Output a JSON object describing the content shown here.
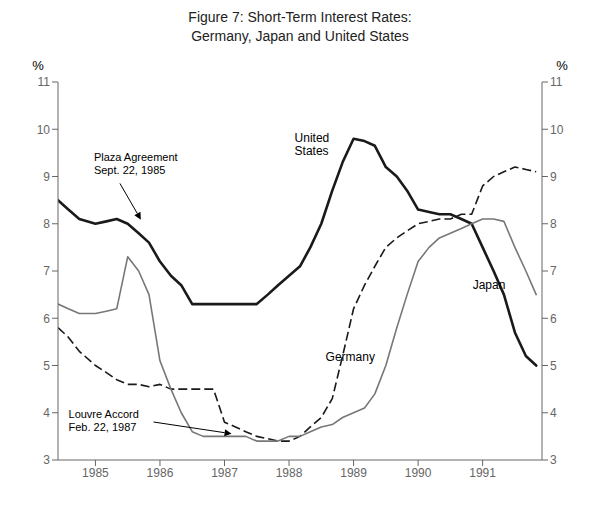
{
  "chart_data": {
    "type": "line",
    "title": "Figure 7: Short-Term Interest Rates:\nGermany, Japan and United States",
    "ylabel": "%",
    "y2label": "%",
    "xlim": [
      1984.42,
      1991.92
    ],
    "xticks": [
      1985,
      1986,
      1987,
      1988,
      1989,
      1990,
      1991
    ],
    "ylim": [
      3,
      11
    ],
    "yticks": [
      3,
      4,
      5,
      6,
      7,
      8,
      9,
      10,
      11
    ],
    "y2lim": [
      3,
      11
    ],
    "y2ticks": [
      3,
      4,
      5,
      6,
      7,
      8,
      9,
      10,
      11
    ],
    "grid": false,
    "x": [
      1984.42,
      1984.58,
      1984.75,
      1985.0,
      1985.17,
      1985.33,
      1985.5,
      1985.67,
      1985.83,
      1986.0,
      1986.17,
      1986.33,
      1986.5,
      1986.67,
      1986.83,
      1987.0,
      1987.17,
      1987.33,
      1987.5,
      1987.67,
      1987.83,
      1988.0,
      1988.17,
      1988.33,
      1988.5,
      1988.67,
      1988.83,
      1989.0,
      1989.17,
      1989.33,
      1989.5,
      1989.67,
      1989.83,
      1990.0,
      1990.17,
      1990.33,
      1990.5,
      1990.67,
      1990.83,
      1991.0,
      1991.17,
      1991.33,
      1991.5,
      1991.67,
      1991.83
    ],
    "series": [
      {
        "name": "United\nStates",
        "color": "#1a1a1a",
        "line_style": "solid",
        "values": [
          8.5,
          8.3,
          8.1,
          8.0,
          8.05,
          8.1,
          8.0,
          7.8,
          7.6,
          7.2,
          6.9,
          6.7,
          6.3,
          6.3,
          6.3,
          6.3,
          6.3,
          6.3,
          6.3,
          6.5,
          6.7,
          6.9,
          7.1,
          7.5,
          8.0,
          8.7,
          9.3,
          9.8,
          9.75,
          9.65,
          9.2,
          9.0,
          8.7,
          8.3,
          8.25,
          8.2,
          8.2,
          8.1,
          8.0,
          7.5,
          7.0,
          6.5,
          5.7,
          5.2,
          5.0
        ]
      },
      {
        "name": "Germany",
        "color": "#1a1a1a",
        "line_style": "dashed",
        "values": [
          5.8,
          5.6,
          5.3,
          5.0,
          4.85,
          4.7,
          4.6,
          4.6,
          4.55,
          4.6,
          4.5,
          4.5,
          4.5,
          4.5,
          4.5,
          3.8,
          3.7,
          3.6,
          3.5,
          3.45,
          3.4,
          3.4,
          3.5,
          3.7,
          3.9,
          4.3,
          5.2,
          6.2,
          6.7,
          7.1,
          7.5,
          7.7,
          7.85,
          8.0,
          8.05,
          8.1,
          8.1,
          8.2,
          8.2,
          8.8,
          9.0,
          9.1,
          9.2,
          9.15,
          9.1
        ]
      },
      {
        "name": "Japan",
        "color": "#777777",
        "line_style": "solid",
        "values": [
          6.3,
          6.2,
          6.1,
          6.1,
          6.15,
          6.2,
          7.3,
          7.0,
          6.5,
          5.1,
          4.5,
          4.0,
          3.6,
          3.5,
          3.5,
          3.5,
          3.5,
          3.5,
          3.4,
          3.4,
          3.4,
          3.5,
          3.5,
          3.6,
          3.7,
          3.75,
          3.9,
          4.0,
          4.1,
          4.4,
          5.0,
          5.8,
          6.5,
          7.2,
          7.5,
          7.7,
          7.8,
          7.9,
          8.0,
          8.1,
          8.1,
          8.05,
          7.5,
          7.0,
          6.5
        ]
      }
    ],
    "annotations": [
      {
        "text": "Plaza Agreement\nSept. 22, 1985",
        "x": 1985.72,
        "y": 8.05
      },
      {
        "text": "Louvre Accord\nFeb. 22, 1987",
        "x": 1987.14,
        "y": 3.55
      }
    ]
  }
}
